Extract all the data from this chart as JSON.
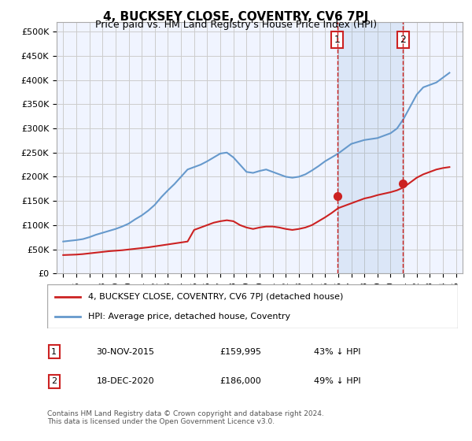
{
  "title": "4, BUCKSEY CLOSE, COVENTRY, CV6 7PJ",
  "subtitle": "Price paid vs. HM Land Registry's House Price Index (HPI)",
  "ylabel": "",
  "ylim": [
    0,
    520000
  ],
  "yticks": [
    0,
    50000,
    100000,
    150000,
    200000,
    250000,
    300000,
    350000,
    400000,
    450000,
    500000
  ],
  "ytick_labels": [
    "£0",
    "£50K",
    "£100K",
    "£150K",
    "£200K",
    "£250K",
    "£300K",
    "£350K",
    "£400K",
    "£450K",
    "£500K"
  ],
  "hpi_color": "#6699cc",
  "price_color": "#cc2222",
  "annotation_color": "#cc2222",
  "grid_color": "#cccccc",
  "background_color": "#ffffff",
  "plot_bg_color": "#f0f4ff",
  "legend_label_price": "4, BUCKSEY CLOSE, COVENTRY, CV6 7PJ (detached house)",
  "legend_label_hpi": "HPI: Average price, detached house, Coventry",
  "sale1_date": "30-NOV-2015",
  "sale1_price": 159995,
  "sale1_hpi_pct": "43% ↓ HPI",
  "sale1_x": 2015.92,
  "sale2_date": "18-DEC-2020",
  "sale2_price": 186000,
  "sale2_hpi_pct": "49% ↓ HPI",
  "sale2_x": 2020.96,
  "footer": "Contains HM Land Registry data © Crown copyright and database right 2024.\nThis data is licensed under the Open Government Licence v3.0.",
  "hpi_years": [
    1995,
    1995.5,
    1996,
    1996.5,
    1997,
    1997.5,
    1998,
    1998.5,
    1999,
    1999.5,
    2000,
    2000.5,
    2001,
    2001.5,
    2002,
    2002.5,
    2003,
    2003.5,
    2004,
    2004.5,
    2005,
    2005.5,
    2006,
    2006.5,
    2007,
    2007.5,
    2008,
    2008.5,
    2009,
    2009.5,
    2010,
    2010.5,
    2011,
    2011.5,
    2012,
    2012.5,
    2013,
    2013.5,
    2014,
    2014.5,
    2015,
    2015.5,
    2016,
    2016.5,
    2017,
    2017.5,
    2018,
    2018.5,
    2019,
    2019.5,
    2020,
    2020.5,
    2021,
    2021.5,
    2022,
    2022.5,
    2023,
    2023.5,
    2024,
    2024.5
  ],
  "hpi_values": [
    66000,
    67500,
    69000,
    71000,
    75000,
    80000,
    84000,
    88000,
    92000,
    97000,
    103000,
    112000,
    120000,
    130000,
    142000,
    158000,
    172000,
    185000,
    200000,
    215000,
    220000,
    225000,
    232000,
    240000,
    248000,
    250000,
    240000,
    225000,
    210000,
    208000,
    212000,
    215000,
    210000,
    205000,
    200000,
    198000,
    200000,
    205000,
    213000,
    222000,
    232000,
    240000,
    248000,
    258000,
    268000,
    272000,
    276000,
    278000,
    280000,
    285000,
    290000,
    300000,
    320000,
    345000,
    370000,
    385000,
    390000,
    395000,
    405000,
    415000
  ],
  "price_years": [
    1995,
    1995.5,
    1996,
    1996.5,
    1997,
    1997.5,
    1998,
    1998.5,
    1999,
    1999.5,
    2000,
    2000.5,
    2001,
    2001.5,
    2002,
    2002.5,
    2003,
    2003.5,
    2004,
    2004.5,
    2005,
    2005.5,
    2006,
    2006.5,
    2007,
    2007.5,
    2008,
    2008.5,
    2009,
    2009.5,
    2010,
    2010.5,
    2011,
    2011.5,
    2012,
    2012.5,
    2013,
    2013.5,
    2014,
    2014.5,
    2015,
    2015.5,
    2016,
    2016.5,
    2017,
    2017.5,
    2018,
    2018.5,
    2019,
    2019.5,
    2020,
    2020.5,
    2021,
    2021.5,
    2022,
    2022.5,
    2023,
    2023.5,
    2024,
    2024.5
  ],
  "price_values": [
    38000,
    38500,
    39000,
    40000,
    41500,
    43000,
    44500,
    46000,
    47000,
    48000,
    49500,
    51000,
    52500,
    54000,
    56000,
    58000,
    60000,
    62000,
    64000,
    66000,
    90000,
    95000,
    100000,
    105000,
    108000,
    110000,
    108000,
    100000,
    95000,
    92000,
    95000,
    97000,
    97000,
    95000,
    92000,
    90000,
    92000,
    95000,
    100000,
    108000,
    116000,
    125000,
    135000,
    140000,
    145000,
    150000,
    155000,
    158000,
    162000,
    165000,
    168000,
    172000,
    178000,
    188000,
    198000,
    205000,
    210000,
    215000,
    218000,
    220000
  ]
}
